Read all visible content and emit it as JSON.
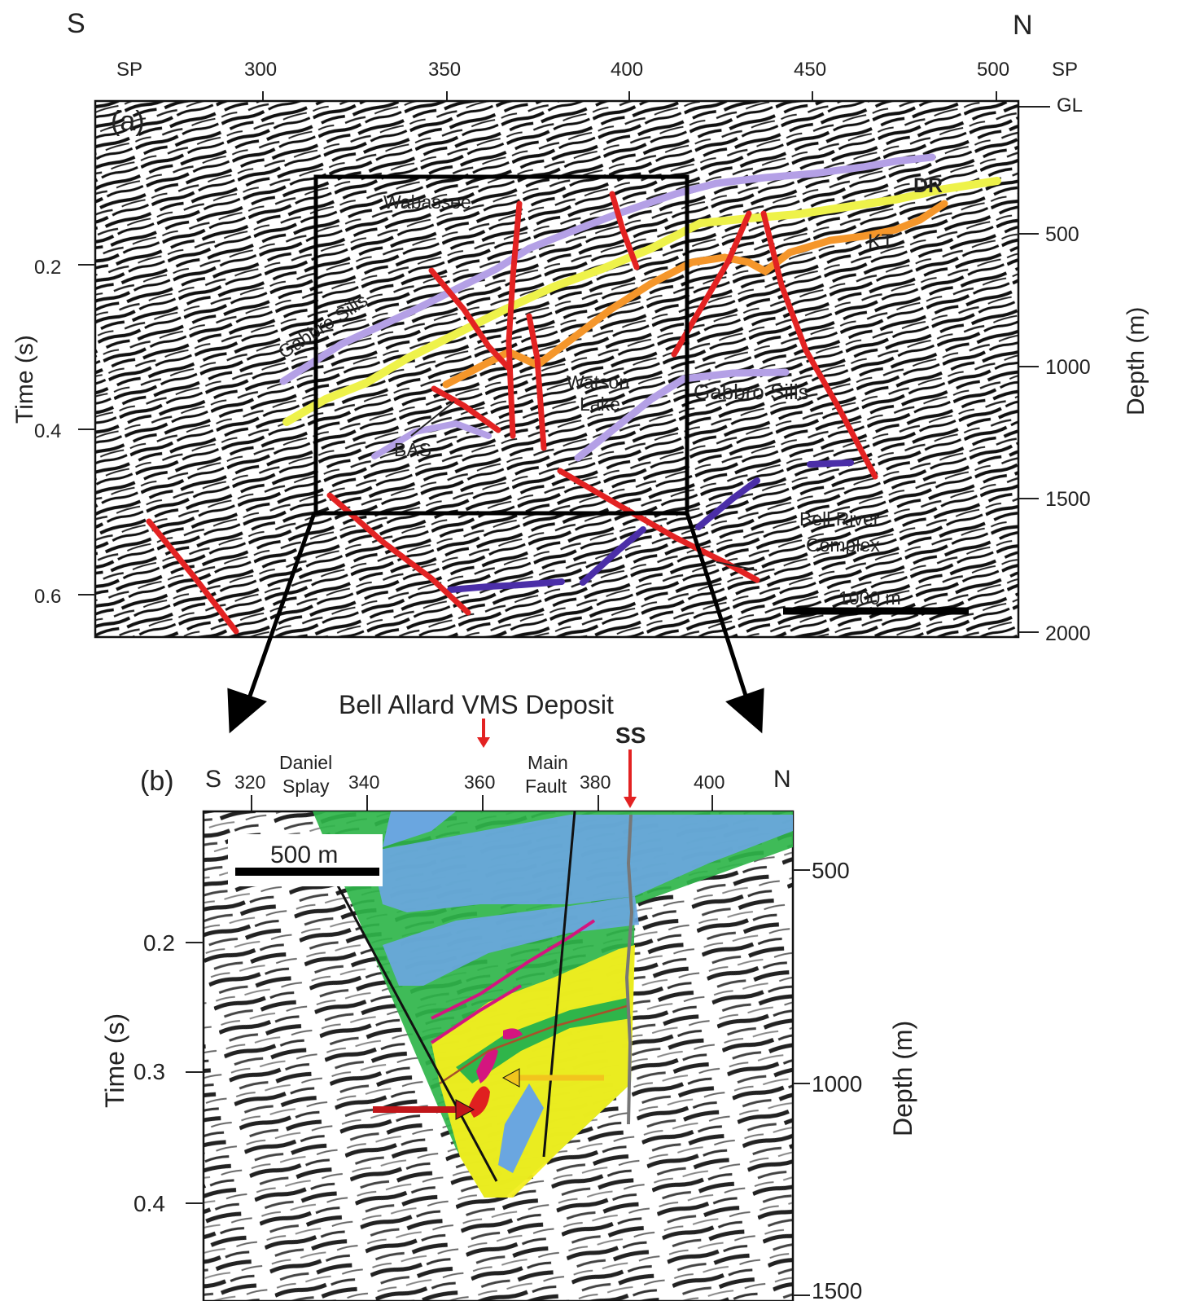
{
  "panel_a": {
    "label": "(a)",
    "orientation": {
      "left": "S",
      "right": "N"
    },
    "sp_label_left": "SP",
    "sp_label_right": "SP",
    "shotpoints": [
      "300",
      "350",
      "400",
      "450",
      "500"
    ],
    "gl_label": "GL",
    "y_title_left": "Time (s)",
    "time_ticks": [
      "0.2",
      "0.4",
      "0.6"
    ],
    "y_title_right": "Depth (m)",
    "depth_ticks": [
      "500",
      "1000",
      "1500",
      "2000"
    ],
    "scale_bar": "1000 m",
    "horizon_labels": {
      "wabassee": "Wabassee",
      "gabbro_sills_1": "Gabbro Sills",
      "gabbro_sills_2": "Gabbro Sills",
      "dr": "DR",
      "kt": "KT",
      "watson_lake_1": "Watson",
      "watson_lake_2": "Lake",
      "bas": "BAS",
      "bell_river_1": "Bell River",
      "bell_river_2": "Complex"
    },
    "colors": {
      "fault": "#e32222",
      "gabbro": "#b4a0e6",
      "dr": "#eef24a",
      "kt": "#f5962a",
      "complex": "#4b2ea8"
    }
  },
  "panel_b": {
    "label": "(b)",
    "title": "Bell Allard VMS Deposit",
    "ss_label": "SS",
    "orientation": {
      "left": "S",
      "right": "N"
    },
    "shotpoints": [
      "320",
      "340",
      "360",
      "380",
      "400"
    ],
    "fault_label_1": {
      "line1": "Daniel",
      "line2": "Splay"
    },
    "fault_label_2": {
      "line1": "Main",
      "line2": "Fault"
    },
    "y_title_left": "Time (s)",
    "time_ticks": [
      "0.2",
      "0.3",
      "0.4"
    ],
    "y_title_right": "Depth (m)",
    "depth_ticks": [
      "500",
      "1000",
      "1500"
    ],
    "scale_bar": "500 m",
    "colors": {
      "green": "#2fb54a",
      "blue": "#6aa6e0",
      "yellow": "#f3ee1e",
      "magenta": "#d4157f",
      "red_arrow": "#c0161a",
      "yellow_arrow": "#f2c51d",
      "ss_marker": "#3a3aa0"
    }
  }
}
